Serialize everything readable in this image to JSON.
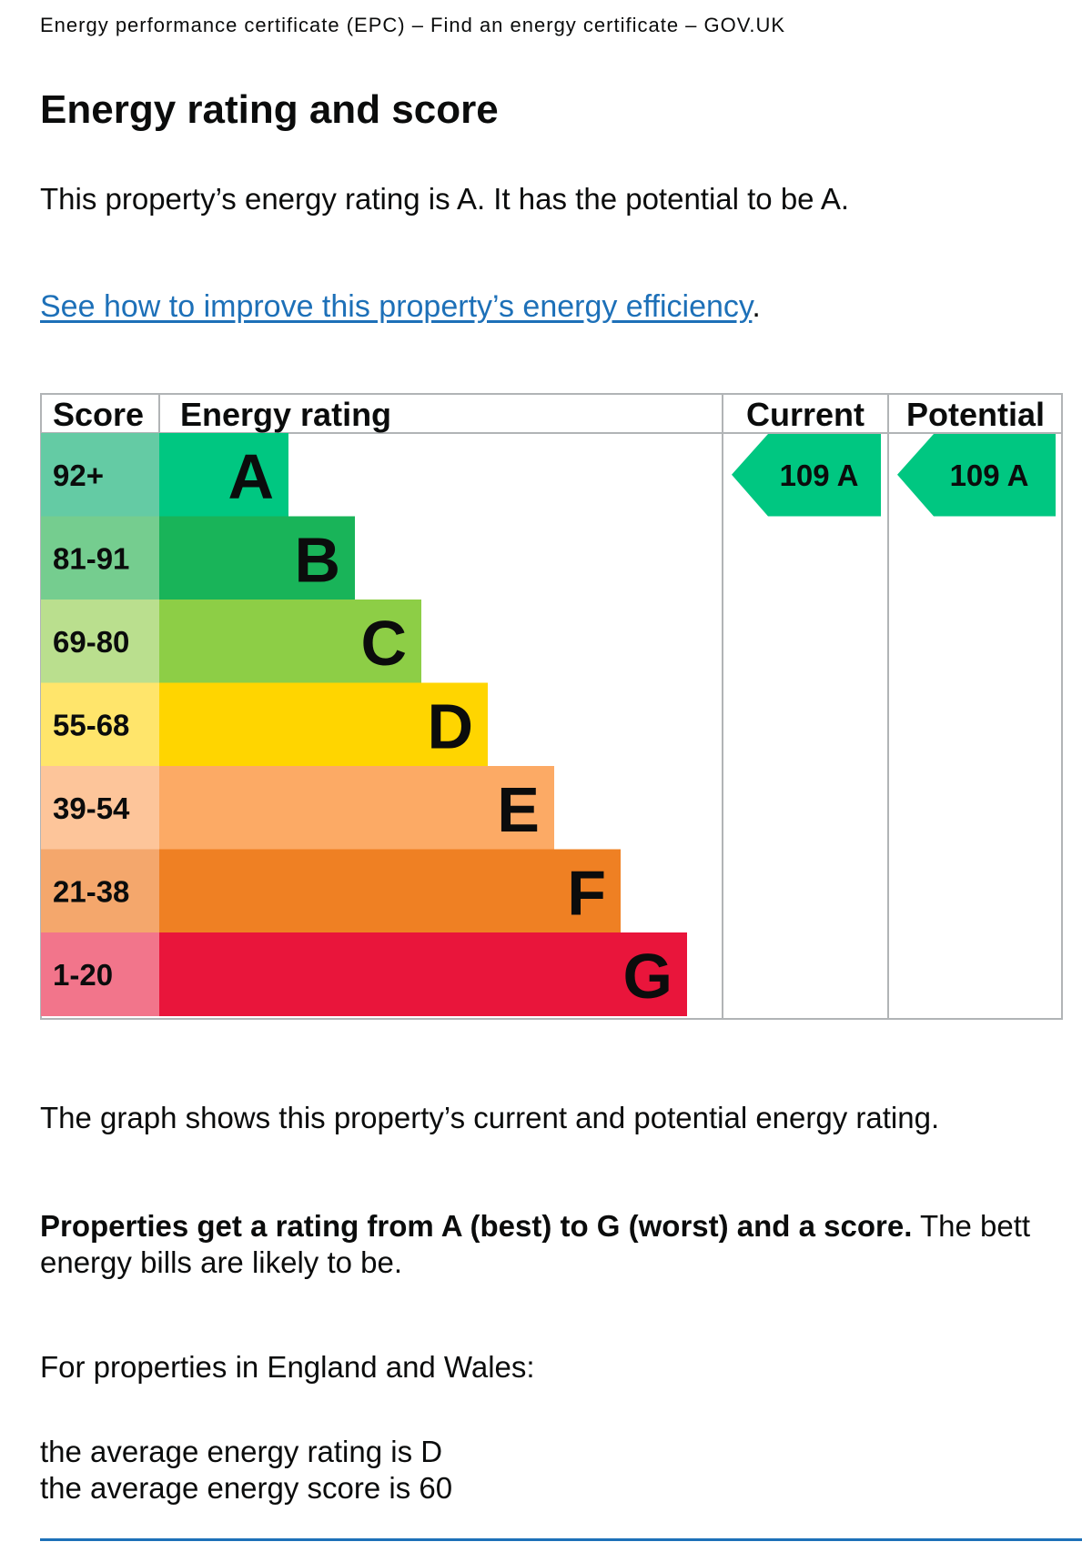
{
  "browser": {
    "page_title": "Energy performance certificate (EPC) – Find an energy certificate – GOV.UK"
  },
  "main": {
    "heading": "Energy rating and score",
    "rating_sentence": "This property’s energy rating is A. It has the potential to be A.",
    "improve_link": "See how to improve this property’s energy efficiency",
    "improve_link_suffix": ".",
    "graph_caption": "The graph shows this property’s current and potential energy rating.",
    "rating_explainer_bold": "Properties get a rating from A (best) to G (worst) and a score.",
    "rating_explainer_rest": "The bett",
    "rating_explainer_line2": "energy bills are likely to be.",
    "region_intro": "For properties in England and Wales:",
    "average_rating": "the average energy rating is D",
    "average_score": "the average energy score is 60"
  },
  "chart_data": {
    "type": "bar",
    "headers": {
      "score": "Score",
      "rating": "Energy rating",
      "current": "Current",
      "potential": "Potential"
    },
    "bands": [
      {
        "score": "92+",
        "letter": "A",
        "color": "#00c781",
        "score_bg": "#64cba4"
      },
      {
        "score": "81-91",
        "letter": "B",
        "color": "#19b459",
        "score_bg": "#75cd8f"
      },
      {
        "score": "69-80",
        "letter": "C",
        "color": "#8dce46",
        "score_bg": "#badf8e"
      },
      {
        "score": "55-68",
        "letter": "D",
        "color": "#ffd500",
        "score_bg": "#ffe56b"
      },
      {
        "score": "39-54",
        "letter": "E",
        "color": "#fcaa65",
        "score_bg": "#fdc59a"
      },
      {
        "score": "21-38",
        "letter": "F",
        "color": "#ef8023",
        "score_bg": "#f4a76c"
      },
      {
        "score": "1-20",
        "letter": "G",
        "color": "#e9153b",
        "score_bg": "#f2758b"
      }
    ],
    "current": {
      "score": "109",
      "letter": "A",
      "color": "#00c781"
    },
    "potential": {
      "score": "109",
      "letter": "A",
      "color": "#00c781"
    }
  }
}
